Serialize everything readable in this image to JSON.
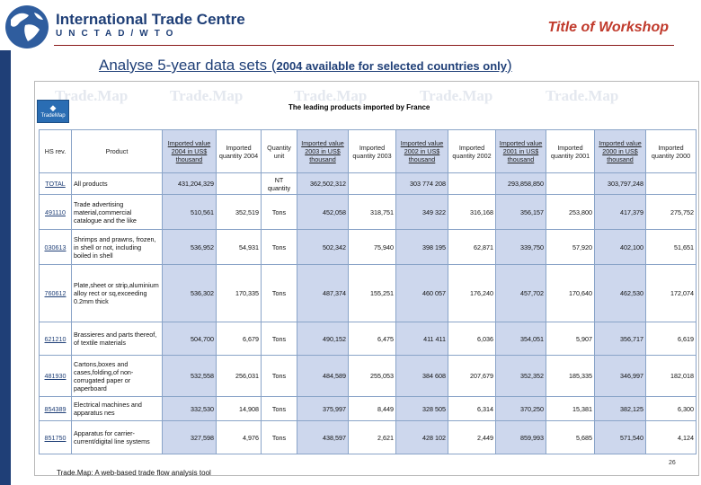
{
  "header": {
    "org_name": "International Trade Centre",
    "org_sub": "UNCTAD/WTO",
    "workshop_title": "Title of Workshop"
  },
  "subtitle": {
    "main": "Analyse 5-year data sets (",
    "year": "2004",
    "rest": " available for selected countries only",
    "close": ")"
  },
  "screenshot": {
    "logo_text": "TradeMap",
    "watermark": "Trade.Map",
    "table_title": "The leading products imported by France",
    "columns": [
      "HS rev.",
      "Product",
      "Imported value 2004 in US$ thousand",
      "Imported quantity 2004",
      "Quantity unit",
      "Imported value 2003 in US$ thousand",
      "Imported quantity 2003",
      "Imported value 2002 in US$ thousand",
      "Imported quantity 2002",
      "Imported value 2001 in US$ thousand",
      "Imported quantity 2001",
      "Imported value 2000 in US$ thousand",
      "Imported quantity 2000"
    ],
    "rows": [
      {
        "code": "TOTAL",
        "product": "All products",
        "v2004": "431,204,329",
        "q2004": "",
        "unit": "NT quantity",
        "v2003": "362,502,312",
        "q2003": "",
        "v2002": "303 774 208",
        "q2002": "",
        "v2001": "293,858,850",
        "q2001": "",
        "v2000": "303,797,248",
        "q2000": ""
      },
      {
        "code": "491110",
        "product": "Trade advertising material,commercial catalogue and the like",
        "v2004": "510,561",
        "q2004": "352,519",
        "unit": "Tons",
        "v2003": "452,058",
        "q2003": "318,751",
        "v2002": "349 322",
        "q2002": "316,168",
        "v2001": "356,157",
        "q2001": "253,800",
        "v2000": "417,379",
        "q2000": "275,752"
      },
      {
        "code": "030613",
        "product": "Shrimps and prawns, frozen, in shell or not, including boiled in shell",
        "v2004": "536,952",
        "q2004": "54,931",
        "unit": "Tons",
        "v2003": "502,342",
        "q2003": "75,940",
        "v2002": "398 195",
        "q2002": "62,871",
        "v2001": "339,750",
        "q2001": "57,920",
        "v2000": "402,100",
        "q2000": "51,651"
      },
      {
        "code": "760612",
        "product": "Plate,sheet or strip,aluminium alloy rect or sq,exceeding 0.2mm thick",
        "v2004": "536,302",
        "q2004": "170,335",
        "unit": "Tons",
        "v2003": "487,374",
        "q2003": "155,251",
        "v2002": "460 057",
        "q2002": "176,240",
        "v2001": "457,702",
        "q2001": "170,640",
        "v2000": "462,530",
        "q2000": "172,074"
      },
      {
        "code": "621210",
        "product": "Brassieres and parts thereof, of textile materials",
        "v2004": "504,700",
        "q2004": "6,679",
        "unit": "Tons",
        "v2003": "490,152",
        "q2003": "6,475",
        "v2002": "411 411",
        "q2002": "6,036",
        "v2001": "354,051",
        "q2001": "5,907",
        "v2000": "356,717",
        "q2000": "6,619"
      },
      {
        "code": "481930",
        "product": "Cartons,boxes and cases,folding,of non-corrugated paper or paperboard",
        "v2004": "532,558",
        "q2004": "256,031",
        "unit": "Tons",
        "v2003": "484,589",
        "q2003": "255,053",
        "v2002": "384 608",
        "q2002": "207,679",
        "v2001": "352,352",
        "q2001": "185,335",
        "v2000": "346,997",
        "q2000": "182,018"
      },
      {
        "code": "854389",
        "product": "Electrical machines and apparatus nes",
        "v2004": "332,530",
        "q2004": "14,908",
        "unit": "Tons",
        "v2003": "375,997",
        "q2003": "8,449",
        "v2002": "328 505",
        "q2002": "6,314",
        "v2001": "370,250",
        "q2001": "15,381",
        "v2000": "382,125",
        "q2000": "6,300"
      },
      {
        "code": "851750",
        "product": "Apparatus for carrier-current/digital line systems",
        "v2004": "327,598",
        "q2004": "4,976",
        "unit": "Tons",
        "v2003": "438,597",
        "q2003": "2,621",
        "v2002": "428 102",
        "q2002": "2,449",
        "v2001": "859,993",
        "q2001": "5,685",
        "v2000": "571,540",
        "q2000": "4,124"
      }
    ]
  },
  "footer": {
    "caption": "Trade.Map: A web-based trade flow analysis tool",
    "page_number": "26"
  },
  "colors": {
    "brand_blue": "#1f3f77",
    "title_red": "#c0392b",
    "cell_shade": "#cdd7ed",
    "grid_border": "#8aa4c8"
  }
}
